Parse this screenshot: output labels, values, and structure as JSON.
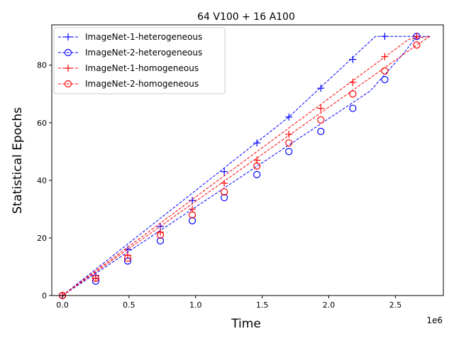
{
  "chart_data": {
    "type": "line",
    "title": "64 V100 + 16 A100",
    "xlabel": "Time",
    "ylabel": "Statistical Epochs",
    "x_offset_label": "1e6",
    "xlim": [
      -80000,
      2860000
    ],
    "ylim": [
      0,
      94
    ],
    "xticks": [
      0,
      500000,
      1000000,
      1500000,
      2000000,
      2500000
    ],
    "xtick_labels": [
      "0.0",
      "0.5",
      "1.0",
      "1.5",
      "2.0",
      "2.5"
    ],
    "yticks": [
      0,
      20,
      40,
      60,
      80
    ],
    "ytick_labels": [
      "0",
      "20",
      "40",
      "60",
      "80"
    ],
    "grid": false,
    "legend_position": "top-left",
    "series": [
      {
        "name": "ImageNet-1-heterogeneous",
        "color": "#0000ff",
        "marker": "plus",
        "x": [
          0,
          250000,
          490000,
          735000,
          975000,
          1215000,
          1460000,
          1700000,
          1940000,
          2180000,
          2420000,
          2660000
        ],
        "y": [
          0,
          7,
          16,
          24,
          33,
          43,
          53,
          62,
          72,
          82,
          90,
          90
        ],
        "line_x": [
          0,
          1700000,
          2350000,
          2660000
        ],
        "line_y": [
          0,
          62,
          90,
          90
        ]
      },
      {
        "name": "ImageNet-2-heterogeneous",
        "color": "#0000ff",
        "marker": "circle",
        "x": [
          0,
          250000,
          490000,
          735000,
          975000,
          1215000,
          1460000,
          1700000,
          1940000,
          2180000,
          2420000,
          2660000
        ],
        "y": [
          0,
          5,
          12,
          19,
          26,
          34,
          42,
          50,
          57,
          65,
          75,
          90
        ],
        "line_x": [
          0,
          2310000,
          2560000,
          2660000,
          2760000
        ],
        "line_y": [
          0,
          71,
          84,
          90,
          90
        ]
      },
      {
        "name": "ImageNet-1-homogeneous",
        "color": "#ff0000",
        "marker": "plus",
        "x": [
          0,
          250000,
          490000,
          735000,
          975000,
          1215000,
          1460000,
          1700000,
          1940000,
          2180000,
          2420000,
          2660000
        ],
        "y": [
          0,
          6,
          14,
          22,
          30,
          39,
          47,
          56,
          65,
          74,
          83,
          90
        ],
        "line_x": [
          0,
          2600000,
          2760000
        ],
        "line_y": [
          0,
          89,
          90
        ]
      },
      {
        "name": "ImageNet-2-homogeneous",
        "color": "#ff0000",
        "marker": "circle",
        "x": [
          0,
          250000,
          490000,
          735000,
          975000,
          1215000,
          1460000,
          1700000,
          1940000,
          2180000,
          2420000,
          2660000
        ],
        "y": [
          0,
          6,
          13,
          21,
          28,
          36,
          45,
          53,
          61,
          70,
          78,
          87
        ],
        "line_x": [
          0,
          2660000,
          2760000
        ],
        "line_y": [
          0,
          87,
          90
        ]
      }
    ]
  }
}
